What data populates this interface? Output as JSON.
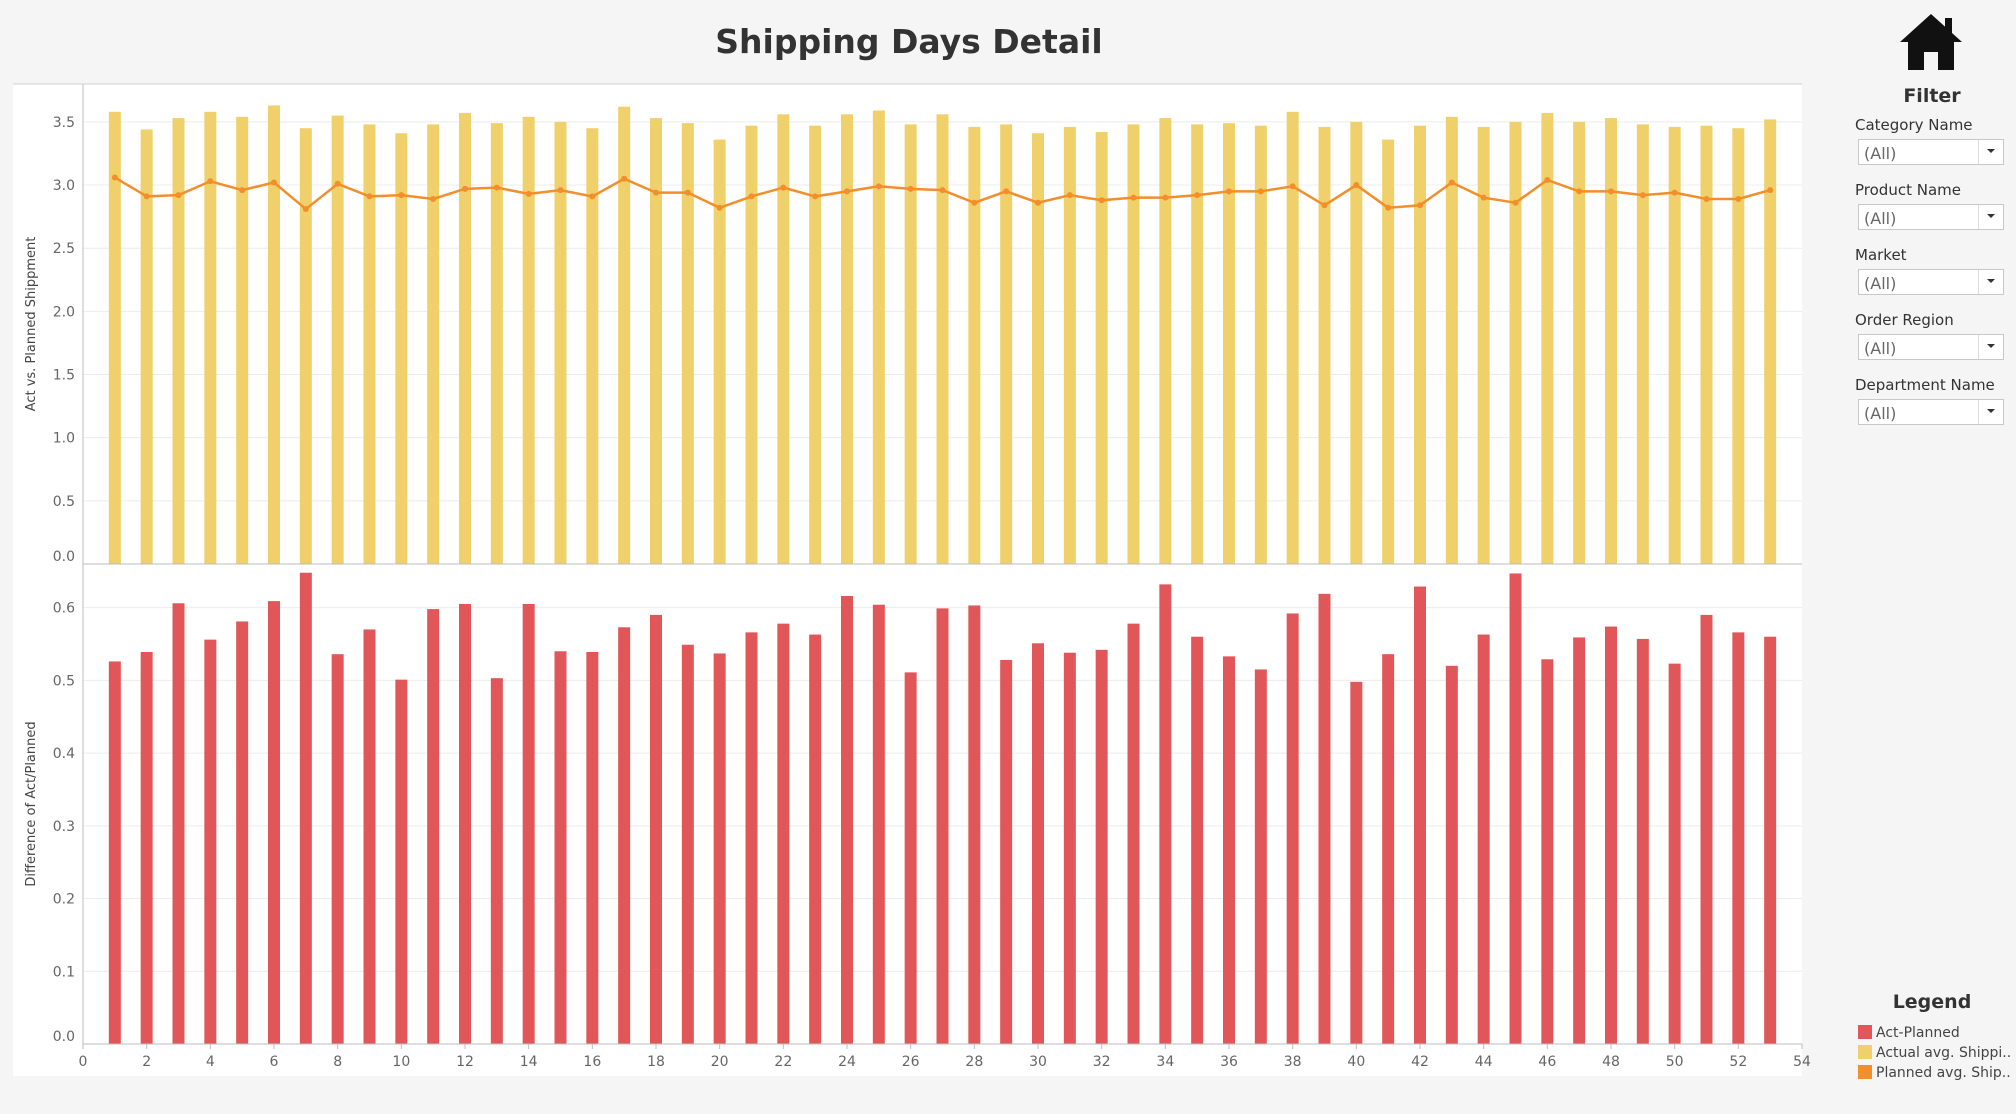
{
  "title": "Shipping Days Detail",
  "filter": {
    "title": "Filter",
    "items": [
      {
        "label": "Category Name",
        "value": "(All)"
      },
      {
        "label": "Product Name",
        "value": "(All)"
      },
      {
        "label": "Market",
        "value": "(All)"
      },
      {
        "label": "Order Region",
        "value": "(All)"
      },
      {
        "label": "Department Name",
        "value": "(All)"
      }
    ]
  },
  "legend": {
    "title": "Legend",
    "items": [
      {
        "label": "Act-Planned",
        "color": "#e15759"
      },
      {
        "label": "Actual avg. Shippi..",
        "color": "#f0d06a"
      },
      {
        "label": "Planned avg. Ship..",
        "color": "#f28e2b"
      }
    ]
  },
  "chart_data": [
    {
      "type": "bar",
      "ylabel": "Act vs. Planned Shippment",
      "ylim": [
        0,
        3.8
      ],
      "yticks": [
        "0.0",
        "0.5",
        "1.0",
        "1.5",
        "2.0",
        "2.5",
        "3.0",
        "3.5"
      ],
      "grid": true,
      "x": [
        1,
        2,
        3,
        4,
        5,
        6,
        7,
        8,
        9,
        10,
        11,
        12,
        13,
        14,
        15,
        16,
        17,
        18,
        19,
        20,
        21,
        22,
        23,
        24,
        25,
        26,
        27,
        28,
        29,
        30,
        31,
        32,
        33,
        34,
        35,
        36,
        37,
        38,
        39,
        40,
        41,
        42,
        43,
        44,
        45,
        46,
        47,
        48,
        49,
        50,
        51,
        52,
        53
      ],
      "series": [
        {
          "name": "Actual avg. Shippi..",
          "type": "bar",
          "color": "#f0d06a",
          "values": [
            3.58,
            3.44,
            3.53,
            3.58,
            3.54,
            3.63,
            3.45,
            3.55,
            3.48,
            3.41,
            3.48,
            3.57,
            3.49,
            3.54,
            3.5,
            3.45,
            3.62,
            3.53,
            3.49,
            3.36,
            3.47,
            3.56,
            3.47,
            3.56,
            3.59,
            3.48,
            3.56,
            3.46,
            3.48,
            3.41,
            3.46,
            3.42,
            3.48,
            3.53,
            3.48,
            3.49,
            3.47,
            3.58,
            3.46,
            3.5,
            3.36,
            3.47,
            3.54,
            3.46,
            3.5,
            3.57,
            3.5,
            3.53,
            3.48,
            3.46,
            3.47,
            3.45,
            3.52
          ]
        },
        {
          "name": "Planned avg. Ship..",
          "type": "line",
          "color": "#f28e2b",
          "values": [
            3.06,
            2.91,
            2.92,
            3.03,
            2.96,
            3.02,
            2.81,
            3.01,
            2.91,
            2.92,
            2.89,
            2.97,
            2.98,
            2.93,
            2.96,
            2.91,
            3.05,
            2.94,
            2.94,
            2.82,
            2.91,
            2.98,
            2.91,
            2.95,
            2.99,
            2.97,
            2.96,
            2.86,
            2.95,
            2.86,
            2.92,
            2.88,
            2.9,
            2.9,
            2.92,
            2.95,
            2.95,
            2.99,
            2.84,
            3.0,
            2.82,
            2.84,
            3.02,
            2.9,
            2.86,
            3.04,
            2.95,
            2.95,
            2.92,
            2.94,
            2.89,
            2.89,
            2.96
          ]
        }
      ]
    },
    {
      "type": "bar",
      "ylabel": "Difference of Act/Planned",
      "ylim": [
        0,
        0.66
      ],
      "yticks": [
        "0.0",
        "0.1",
        "0.2",
        "0.3",
        "0.4",
        "0.5",
        "0.6"
      ],
      "grid": true,
      "xlim": [
        0,
        54
      ],
      "xticks": [
        "0",
        "2",
        "4",
        "6",
        "8",
        "10",
        "12",
        "14",
        "16",
        "18",
        "20",
        "22",
        "24",
        "26",
        "28",
        "30",
        "32",
        "34",
        "36",
        "38",
        "40",
        "42",
        "44",
        "46",
        "48",
        "50",
        "52",
        "54"
      ],
      "x": [
        1,
        2,
        3,
        4,
        5,
        6,
        7,
        8,
        9,
        10,
        11,
        12,
        13,
        14,
        15,
        16,
        17,
        18,
        19,
        20,
        21,
        22,
        23,
        24,
        25,
        26,
        27,
        28,
        29,
        30,
        31,
        32,
        33,
        34,
        35,
        36,
        37,
        38,
        39,
        40,
        41,
        42,
        43,
        44,
        45,
        46,
        47,
        48,
        49,
        50,
        51,
        52,
        53
      ],
      "series": [
        {
          "name": "Act-Planned",
          "type": "bar",
          "color": "#e15759",
          "values": [
            0.526,
            0.539,
            0.606,
            0.556,
            0.581,
            0.609,
            0.648,
            0.536,
            0.57,
            0.501,
            0.598,
            0.605,
            0.503,
            0.605,
            0.54,
            0.539,
            0.573,
            0.59,
            0.549,
            0.537,
            0.566,
            0.578,
            0.563,
            0.616,
            0.604,
            0.511,
            0.599,
            0.603,
            0.528,
            0.551,
            0.538,
            0.542,
            0.578,
            0.632,
            0.56,
            0.533,
            0.515,
            0.592,
            0.619,
            0.498,
            0.536,
            0.629,
            0.52,
            0.563,
            0.647,
            0.529,
            0.559,
            0.574,
            0.557,
            0.523,
            0.59,
            0.566,
            0.56
          ]
        }
      ]
    }
  ]
}
